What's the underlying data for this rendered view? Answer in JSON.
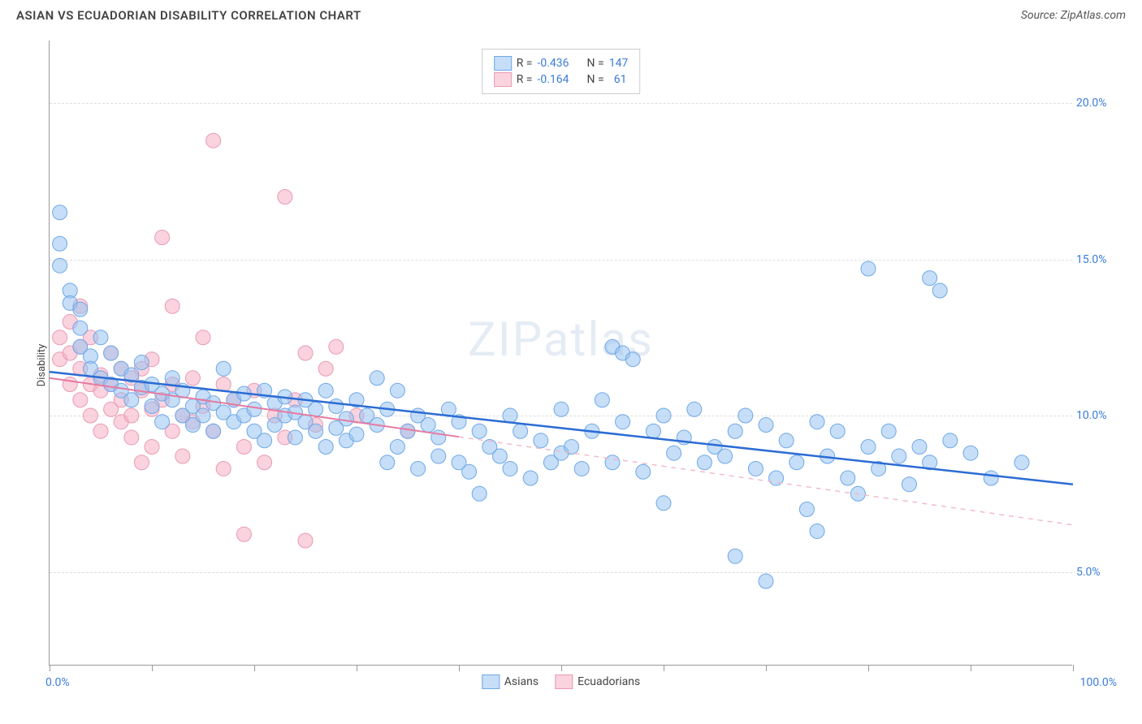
{
  "title": "ASIAN VS ECUADORIAN DISABILITY CORRELATION CHART",
  "source_label": "Source: ZipAtlas.com",
  "watermark": "ZIPatlas",
  "ylabel": "Disability",
  "chart": {
    "type": "scatter",
    "xlim": [
      0,
      100
    ],
    "ylim": [
      2,
      22
    ],
    "xaxis_min_label": "0.0%",
    "xaxis_max_label": "100.0%",
    "xticks": [
      0,
      10,
      20,
      30,
      40,
      50,
      60,
      70,
      80,
      90,
      100
    ],
    "yticks": [
      {
        "value": 5.0,
        "label": "5.0%"
      },
      {
        "value": 10.0,
        "label": "10.0%"
      },
      {
        "value": 15.0,
        "label": "15.0%"
      },
      {
        "value": 20.0,
        "label": "20.0%"
      }
    ],
    "background_color": "#ffffff",
    "grid_color": "#dddddd",
    "axis_color": "#999999",
    "tick_label_color": "#3b7dd8",
    "series": {
      "asians": {
        "label": "Asians",
        "color_fill": "rgba(151,194,240,0.55)",
        "color_stroke": "#6fa8e8",
        "marker_radius": 9,
        "R": "-0.436",
        "N": "147",
        "trend": {
          "x1": 0,
          "y1": 11.4,
          "x2": 100,
          "y2": 7.8,
          "solid_until_x": 100,
          "color": "#2b6cd4",
          "width": 2.5
        },
        "points": [
          [
            1,
            16.5
          ],
          [
            1,
            15.5
          ],
          [
            1,
            14.8
          ],
          [
            2,
            14.0
          ],
          [
            2,
            13.6
          ],
          [
            3,
            13.4
          ],
          [
            3,
            12.8
          ],
          [
            3,
            12.2
          ],
          [
            4,
            11.9
          ],
          [
            4,
            11.5
          ],
          [
            5,
            11.2
          ],
          [
            5,
            12.5
          ],
          [
            6,
            11.0
          ],
          [
            6,
            12.0
          ],
          [
            7,
            11.5
          ],
          [
            7,
            10.8
          ],
          [
            8,
            10.5
          ],
          [
            8,
            11.3
          ],
          [
            9,
            10.9
          ],
          [
            9,
            11.7
          ],
          [
            10,
            10.3
          ],
          [
            10,
            11.0
          ],
          [
            11,
            10.7
          ],
          [
            11,
            9.8
          ],
          [
            12,
            10.5
          ],
          [
            12,
            11.2
          ],
          [
            13,
            10.0
          ],
          [
            13,
            10.8
          ],
          [
            14,
            10.3
          ],
          [
            14,
            9.7
          ],
          [
            15,
            10.6
          ],
          [
            15,
            10.0
          ],
          [
            16,
            9.5
          ],
          [
            16,
            10.4
          ],
          [
            17,
            10.1
          ],
          [
            17,
            11.5
          ],
          [
            18,
            9.8
          ],
          [
            18,
            10.5
          ],
          [
            19,
            10.0
          ],
          [
            19,
            10.7
          ],
          [
            20,
            9.5
          ],
          [
            20,
            10.2
          ],
          [
            21,
            10.8
          ],
          [
            21,
            9.2
          ],
          [
            22,
            10.4
          ],
          [
            22,
            9.7
          ],
          [
            23,
            10.0
          ],
          [
            23,
            10.6
          ],
          [
            24,
            9.3
          ],
          [
            24,
            10.1
          ],
          [
            25,
            9.8
          ],
          [
            25,
            10.5
          ],
          [
            26,
            9.5
          ],
          [
            26,
            10.2
          ],
          [
            27,
            9.0
          ],
          [
            27,
            10.8
          ],
          [
            28,
            9.6
          ],
          [
            28,
            10.3
          ],
          [
            29,
            9.2
          ],
          [
            29,
            9.9
          ],
          [
            30,
            10.5
          ],
          [
            30,
            9.4
          ],
          [
            31,
            10.0
          ],
          [
            32,
            11.2
          ],
          [
            32,
            9.7
          ],
          [
            33,
            8.5
          ],
          [
            33,
            10.2
          ],
          [
            34,
            9.0
          ],
          [
            34,
            10.8
          ],
          [
            35,
            9.5
          ],
          [
            36,
            8.3
          ],
          [
            36,
            10.0
          ],
          [
            37,
            9.7
          ],
          [
            38,
            8.7
          ],
          [
            38,
            9.3
          ],
          [
            39,
            10.2
          ],
          [
            40,
            8.5
          ],
          [
            40,
            9.8
          ],
          [
            41,
            8.2
          ],
          [
            42,
            9.5
          ],
          [
            42,
            7.5
          ],
          [
            43,
            9.0
          ],
          [
            44,
            8.7
          ],
          [
            45,
            10.0
          ],
          [
            45,
            8.3
          ],
          [
            46,
            9.5
          ],
          [
            47,
            8.0
          ],
          [
            48,
            9.2
          ],
          [
            49,
            8.5
          ],
          [
            50,
            10.2
          ],
          [
            50,
            8.8
          ],
          [
            51,
            9.0
          ],
          [
            52,
            8.3
          ],
          [
            53,
            9.5
          ],
          [
            54,
            10.5
          ],
          [
            55,
            12.2
          ],
          [
            55,
            8.5
          ],
          [
            56,
            12.0
          ],
          [
            56,
            9.8
          ],
          [
            57,
            11.8
          ],
          [
            58,
            8.2
          ],
          [
            59,
            9.5
          ],
          [
            60,
            10.0
          ],
          [
            60,
            7.2
          ],
          [
            61,
            8.8
          ],
          [
            62,
            9.3
          ],
          [
            63,
            10.2
          ],
          [
            64,
            8.5
          ],
          [
            65,
            9.0
          ],
          [
            66,
            8.7
          ],
          [
            67,
            5.5
          ],
          [
            67,
            9.5
          ],
          [
            68,
            10.0
          ],
          [
            69,
            8.3
          ],
          [
            70,
            4.7
          ],
          [
            70,
            9.7
          ],
          [
            71,
            8.0
          ],
          [
            72,
            9.2
          ],
          [
            73,
            8.5
          ],
          [
            74,
            7.0
          ],
          [
            75,
            9.8
          ],
          [
            75,
            6.3
          ],
          [
            76,
            8.7
          ],
          [
            77,
            9.5
          ],
          [
            78,
            8.0
          ],
          [
            79,
            7.5
          ],
          [
            80,
            14.7
          ],
          [
            80,
            9.0
          ],
          [
            81,
            8.3
          ],
          [
            82,
            9.5
          ],
          [
            83,
            8.7
          ],
          [
            84,
            7.8
          ],
          [
            85,
            9.0
          ],
          [
            86,
            14.4
          ],
          [
            86,
            8.5
          ],
          [
            87,
            14.0
          ],
          [
            88,
            9.2
          ],
          [
            90,
            8.8
          ],
          [
            92,
            8.0
          ],
          [
            95,
            8.5
          ]
        ]
      },
      "ecuadorians": {
        "label": "Ecuadorians",
        "color_fill": "rgba(245,175,195,0.55)",
        "color_stroke": "#e89ab5",
        "marker_radius": 9,
        "R": "-0.164",
        "N": "61",
        "trend": {
          "x1": 0,
          "y1": 11.2,
          "x2": 100,
          "y2": 6.5,
          "solid_until_x": 40,
          "color": "#e67aa0",
          "width": 2,
          "dash_color": "#f0b8c8"
        },
        "points": [
          [
            1,
            12.5
          ],
          [
            1,
            11.8
          ],
          [
            2,
            12.0
          ],
          [
            2,
            11.0
          ],
          [
            2,
            13.0
          ],
          [
            3,
            11.5
          ],
          [
            3,
            10.5
          ],
          [
            3,
            12.2
          ],
          [
            3,
            13.5
          ],
          [
            4,
            11.0
          ],
          [
            4,
            10.0
          ],
          [
            4,
            12.5
          ],
          [
            5,
            11.3
          ],
          [
            5,
            9.5
          ],
          [
            5,
            10.8
          ],
          [
            6,
            11.0
          ],
          [
            6,
            10.2
          ],
          [
            6,
            12.0
          ],
          [
            7,
            9.8
          ],
          [
            7,
            11.5
          ],
          [
            7,
            10.5
          ],
          [
            8,
            10.0
          ],
          [
            8,
            11.2
          ],
          [
            8,
            9.3
          ],
          [
            9,
            8.5
          ],
          [
            9,
            10.8
          ],
          [
            9,
            11.5
          ],
          [
            10,
            10.2
          ],
          [
            10,
            9.0
          ],
          [
            10,
            11.8
          ],
          [
            11,
            15.7
          ],
          [
            11,
            10.5
          ],
          [
            12,
            9.5
          ],
          [
            12,
            13.5
          ],
          [
            12,
            11.0
          ],
          [
            13,
            10.0
          ],
          [
            13,
            8.7
          ],
          [
            14,
            11.2
          ],
          [
            14,
            9.8
          ],
          [
            15,
            12.5
          ],
          [
            15,
            10.3
          ],
          [
            16,
            18.8
          ],
          [
            16,
            9.5
          ],
          [
            17,
            11.0
          ],
          [
            17,
            8.3
          ],
          [
            18,
            10.5
          ],
          [
            19,
            9.0
          ],
          [
            19,
            6.2
          ],
          [
            20,
            10.8
          ],
          [
            21,
            8.5
          ],
          [
            22,
            10.0
          ],
          [
            23,
            17.0
          ],
          [
            23,
            9.3
          ],
          [
            24,
            10.5
          ],
          [
            25,
            12.0
          ],
          [
            25,
            6.0
          ],
          [
            26,
            9.7
          ],
          [
            27,
            11.5
          ],
          [
            28,
            12.2
          ],
          [
            30,
            10.0
          ],
          [
            35,
            9.5
          ]
        ]
      }
    },
    "stats_legend": {
      "R_label": "R =",
      "N_label": "N ="
    }
  }
}
